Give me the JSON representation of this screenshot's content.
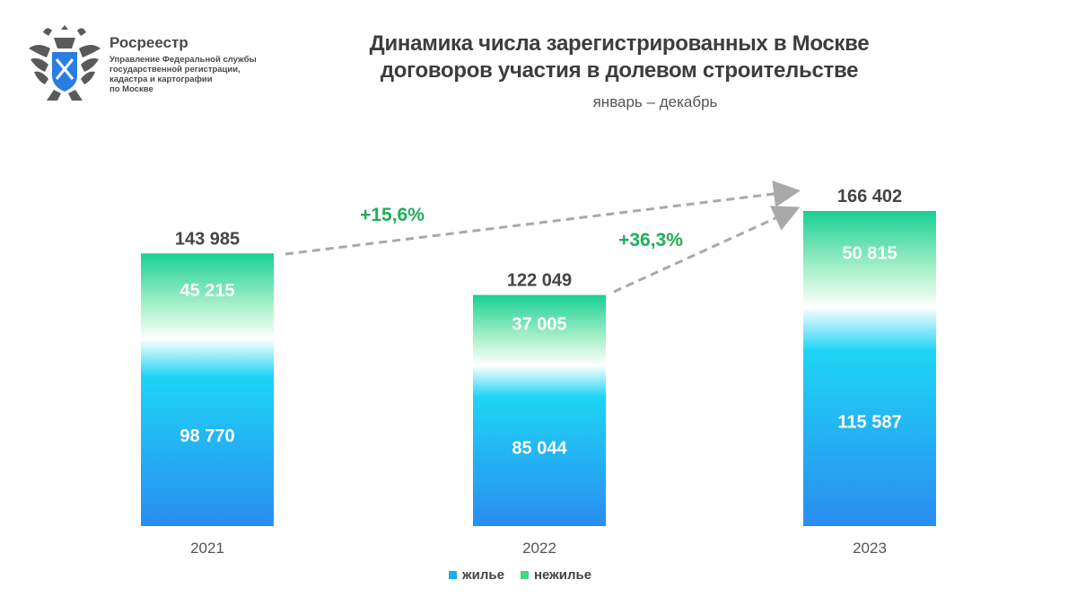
{
  "logo": {
    "name": "Росреестр",
    "subtitle_lines": [
      "Управление Федеральной службы",
      "государственной регистрации,",
      "кадастра и картографии",
      "по Москве"
    ]
  },
  "title_lines": [
    "Динамика числа зарегистрированных в Москве",
    "договоров участия в долевом строительстве"
  ],
  "subtitle": "январь – декабрь",
  "colors": {
    "residential_top": "#1ed4f5",
    "residential_bottom": "#2a8df0",
    "nonresidential_top": "#19cf94",
    "growth_text": "#1fae58",
    "arrow": "#a9a9a9"
  },
  "chart_data": {
    "type": "bar",
    "stacked": true,
    "categories": [
      "2021",
      "2022",
      "2023"
    ],
    "series": [
      {
        "name": "жилье",
        "values": [
          98770,
          85044,
          115587
        ]
      },
      {
        "name": "нежилье",
        "values": [
          45215,
          37005,
          50815
        ]
      }
    ],
    "totals": [
      "143 985",
      "122 049",
      "166 402"
    ],
    "value_labels": {
      "жилье": [
        "98 770",
        "85 044",
        "115 587"
      ],
      "нежилье": [
        "45 215",
        "37 005",
        "50 815"
      ]
    },
    "growth_annotations": [
      {
        "from": "2021",
        "to": "2023",
        "label": "+15,6%"
      },
      {
        "from": "2022",
        "to": "2023",
        "label": "+36,3%"
      }
    ],
    "legend_position": "bottom-center",
    "grid": false
  },
  "legend": [
    {
      "name": "жилье",
      "color": "#1ab0f0"
    },
    {
      "name": "нежилье",
      "color": "#3dd98c"
    }
  ]
}
